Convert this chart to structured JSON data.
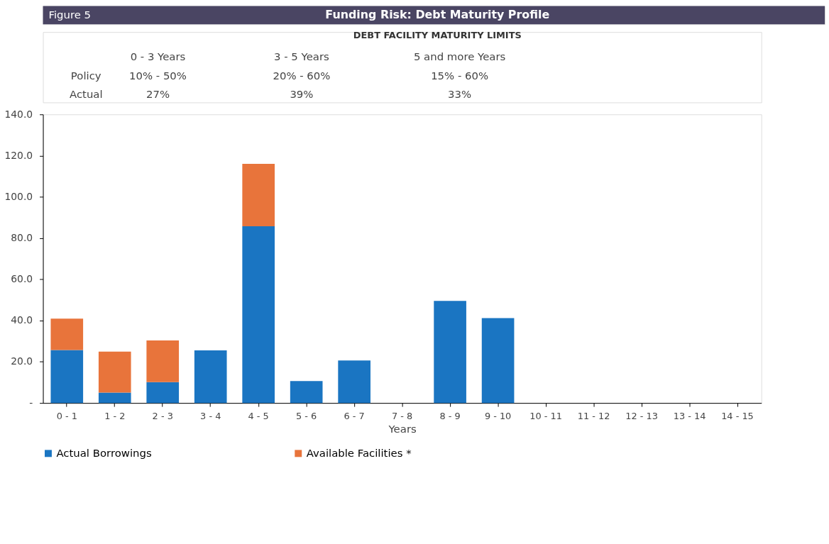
{
  "chart_data": {
    "type": "bar",
    "title": "Funding Risk: Debt Maturity Profile",
    "subtitle": "DEBT FACILITY MATURITY LIMITS",
    "xlabel": "Years",
    "annotations": [
      "Figure 5",
      "0 - 3 Years",
      "3 - 5 Years",
      "5 and more Years",
      "Policy",
      "10% - 50%",
      "20% - 60%",
      "15% - 60%",
      "Actual",
      "27%",
      "39%",
      "33%"
    ],
    "categories": [
      "0 - 1",
      "1 - 2",
      "2 - 3",
      "3 - 4",
      "4 - 5",
      "5 - 6",
      "6 - 7",
      "7 - 8",
      "8 - 9",
      "9 - 10",
      "10 - 11",
      "11 - 12",
      "12 - 13",
      "13 - 14",
      "14 - 15"
    ],
    "stacked": true,
    "series": [
      {
        "name": "Actual Borrowings",
        "color": "#1a75c2",
        "values": [
          25.7,
          5.0,
          10.1,
          25.5,
          85.7,
          10.6,
          20.6,
          0,
          49.5,
          41.2,
          0,
          0,
          0,
          0,
          0
        ]
      },
      {
        "name": "Available Facilities *",
        "color": "#e8743b",
        "values": [
          15.2,
          19.9,
          20.2,
          0,
          30.3,
          0,
          0,
          0,
          0,
          0,
          0,
          0,
          0,
          0,
          0
        ]
      }
    ],
    "ylim": [
      0,
      140
    ],
    "yticks": [
      {
        "value": 0,
        "label": "-"
      },
      {
        "value": 20,
        "label": "20.0"
      },
      {
        "value": 40,
        "label": "40.0"
      },
      {
        "value": 60,
        "label": "60.0"
      },
      {
        "value": 80,
        "label": "80.0"
      },
      {
        "value": 100,
        "label": "100.0"
      },
      {
        "value": 120,
        "label": "120.0"
      },
      {
        "value": 140,
        "label": "140.0"
      }
    ],
    "grid": false,
    "legend": "bottom"
  }
}
